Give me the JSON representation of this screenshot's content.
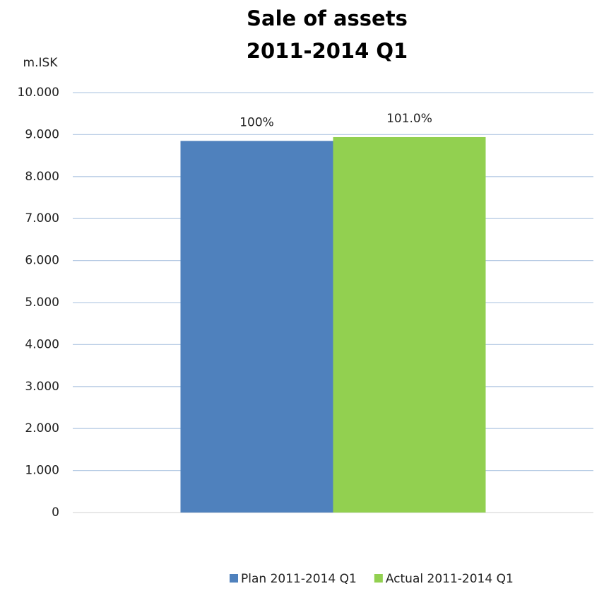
{
  "chart_data": {
    "type": "bar",
    "title": [
      "Sale of assets",
      "2011-2014 Q1"
    ],
    "y_label": "m.ISK",
    "categories": [
      null
    ],
    "series": [
      {
        "name": "Plan 2011-2014 Q1",
        "color": "#4f81bd",
        "values": [
          8850
        ]
      },
      {
        "name": "Actual 2011-2014 Q1",
        "color": "#92d050",
        "values": [
          8940
        ]
      }
    ],
    "annotations": [
      "100%",
      "101.0%"
    ],
    "ylim": [
      0,
      10000
    ],
    "yticks": [
      0,
      {
        "value": 1000,
        "label": "1.000"
      },
      {
        "value": 2000,
        "label": "2.000"
      },
      {
        "value": 3000,
        "label": "3.000"
      },
      {
        "value": 4000,
        "label": "4.000"
      },
      {
        "value": 5000,
        "label": "5.000"
      },
      {
        "value": 6000,
        "label": "6.000"
      },
      {
        "value": 7000,
        "label": "7.000"
      },
      {
        "value": 8000,
        "label": "8.000"
      },
      {
        "value": 9000,
        "label": "9.000"
      },
      {
        "value": 10000,
        "label": "10.000"
      }
    ],
    "grid": true,
    "legend": "bottom"
  }
}
